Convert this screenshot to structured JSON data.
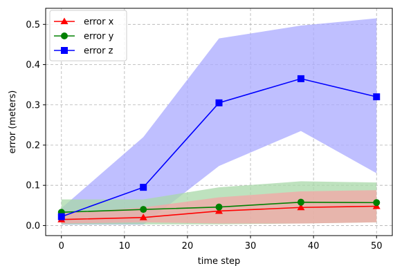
{
  "chart_data": {
    "type": "line",
    "title": "",
    "xlabel": "time step",
    "ylabel": "error (meters)",
    "xlim": [
      -2.5,
      52.5
    ],
    "ylim": [
      -0.025,
      0.54
    ],
    "xticks": [
      0,
      10,
      20,
      30,
      40,
      50
    ],
    "xtick_labels": [
      "0",
      "10",
      "20",
      "30",
      "40",
      "50"
    ],
    "yticks": [
      0.0,
      0.1,
      0.2,
      0.3,
      0.4,
      0.5
    ],
    "ytick_labels": [
      "0.0",
      "0.1",
      "0.2",
      "0.3",
      "0.4",
      "0.5"
    ],
    "grid": true,
    "legend_position": "top-left",
    "x": [
      0,
      13,
      25,
      38,
      50
    ],
    "series": [
      {
        "name": "error x",
        "color": "#ff0000",
        "band_color": "#f4a6a6",
        "marker": "triangle",
        "values": [
          0.015,
          0.02,
          0.036,
          0.045,
          0.048
        ],
        "lower": [
          0.005,
          0.008,
          0.005,
          0.005,
          0.008
        ],
        "upper": [
          0.03,
          0.045,
          0.07,
          0.085,
          0.088
        ]
      },
      {
        "name": "error y",
        "color": "#008000",
        "band_color": "#a8d8a8",
        "marker": "circle",
        "values": [
          0.033,
          0.04,
          0.046,
          0.058,
          0.057
        ],
        "lower": [
          0.003,
          0.003,
          0.003,
          0.005,
          0.008
        ],
        "upper": [
          0.065,
          0.065,
          0.095,
          0.11,
          0.107
        ]
      },
      {
        "name": "error z",
        "color": "#0000ff",
        "band_color": "#aaaaff",
        "marker": "square",
        "values": [
          0.022,
          0.095,
          0.305,
          0.365,
          0.32
        ],
        "lower": [
          0.002,
          0.002,
          0.148,
          0.235,
          0.13
        ],
        "upper": [
          0.043,
          0.22,
          0.465,
          0.497,
          0.515
        ]
      }
    ]
  }
}
